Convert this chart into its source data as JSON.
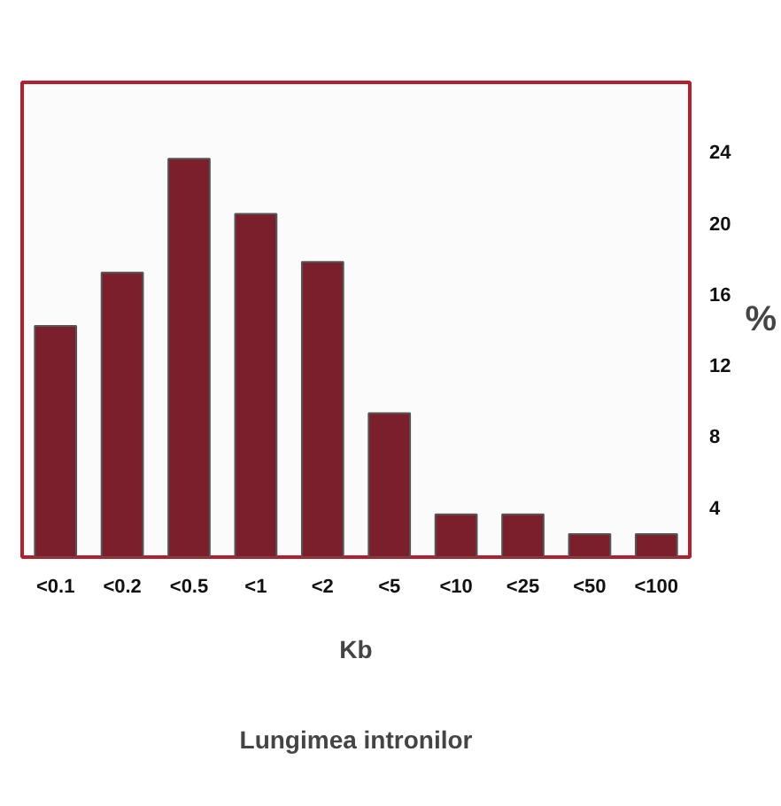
{
  "chart_data": {
    "type": "bar",
    "categories": [
      "<0.1",
      "<0.2",
      "<0.5",
      "<1",
      "<2",
      "<5",
      "<10",
      "<25",
      "<50",
      "<100"
    ],
    "values": [
      14.2,
      17.2,
      23.6,
      20.5,
      17.8,
      9.3,
      3.6,
      3.6,
      2.5,
      2.5
    ],
    "color": "#7a1f2b",
    "ylim": [
      1.2,
      27.9
    ],
    "yticks": [
      4,
      8,
      12,
      16,
      20,
      24
    ],
    "xlabel": "Kb",
    "ylabel": "%",
    "annotations": [
      "Lungimea intronilor"
    ],
    "grid": false
  }
}
